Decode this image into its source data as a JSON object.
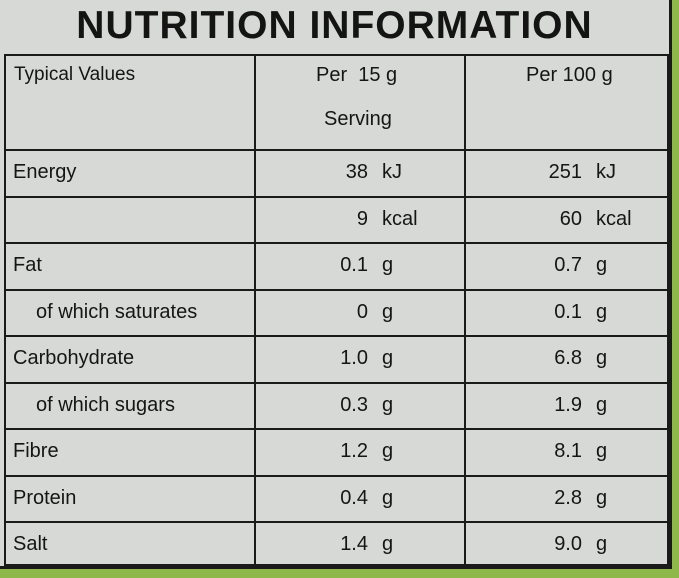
{
  "title": "NUTRITION INFORMATION",
  "header": {
    "typical_values": "Typical Values",
    "per_serving_line1": "Per  15 g",
    "per_serving_line2": "Serving",
    "per_100g": "Per 100 g"
  },
  "rows": [
    {
      "label": "Energy",
      "serving_num": "38",
      "serving_unit": "kJ",
      "per100_num": "251",
      "per100_unit": "kJ"
    },
    {
      "label": "",
      "serving_num": "9",
      "serving_unit": "kcal",
      "per100_num": "60",
      "per100_unit": "kcal"
    },
    {
      "label": "Fat",
      "serving_num": "0.1",
      "serving_unit": "g",
      "per100_num": "0.7",
      "per100_unit": "g"
    },
    {
      "label": "of which saturates",
      "serving_num": "0",
      "serving_unit": "g",
      "per100_num": "0.1",
      "per100_unit": "g"
    },
    {
      "label": "Carbohydrate",
      "serving_num": "1.0",
      "serving_unit": "g",
      "per100_num": "6.8",
      "per100_unit": "g"
    },
    {
      "label": "of which sugars",
      "serving_num": "0.3",
      "serving_unit": "g",
      "per100_num": "1.9",
      "per100_unit": "g"
    },
    {
      "label": "Fibre",
      "serving_num": "1.2",
      "serving_unit": "g",
      "per100_num": "8.1",
      "per100_unit": "g"
    },
    {
      "label": "Protein",
      "serving_num": "0.4",
      "serving_unit": "g",
      "per100_num": "2.8",
      "per100_unit": "g"
    },
    {
      "label": "Salt",
      "serving_num": "1.4",
      "serving_unit": "g",
      "per100_num": "9.0",
      "per100_unit": "g"
    }
  ]
}
